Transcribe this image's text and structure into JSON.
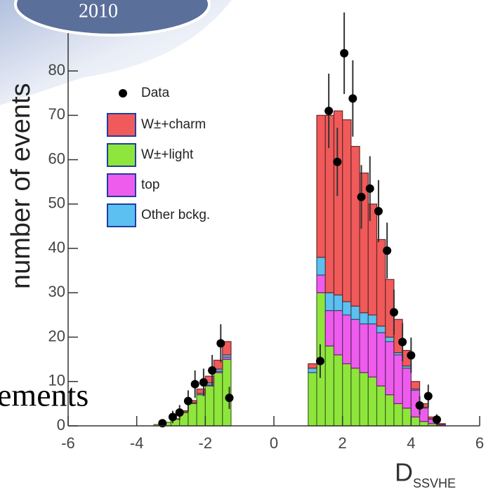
{
  "chart_data": {
    "type": "histogram",
    "badge": "2010",
    "overlay_text": "ements",
    "y_label": "number of events",
    "x_label": "D",
    "x_label_sub": "SSVHE",
    "xlim": [
      -6,
      6
    ],
    "xticks": [
      -6,
      -4,
      -2,
      0,
      2,
      4,
      6
    ],
    "ylim": [
      0,
      96
    ],
    "yticks": [
      0,
      10,
      20,
      30,
      40,
      50,
      60,
      70,
      80
    ],
    "bins": [
      -3.5,
      -3.25,
      -3,
      -2.75,
      -2.5,
      -2.25,
      -2,
      -1.75,
      -1.5,
      -1.25,
      -1,
      -0.75,
      -0.5,
      -0.25,
      0,
      0.25,
      0.5,
      0.75,
      1,
      1.25,
      1.5,
      1.75,
      2,
      2.25,
      2.5,
      2.75,
      3,
      3.25,
      3.5,
      3.75,
      4,
      4.25,
      4.5,
      4.75,
      5
    ],
    "series": [
      {
        "name": "W±+charm",
        "color": "#f05a5a",
        "values": [
          0,
          0,
          0.1,
          0.3,
          0.5,
          1,
          1.5,
          2,
          3,
          0,
          0,
          0,
          0,
          0,
          0,
          0,
          0,
          0,
          1,
          32,
          40,
          41.5,
          41,
          36,
          31.5,
          25,
          19.5,
          13,
          7.5,
          3.5,
          1.7,
          0.8,
          0.4,
          0.1
        ]
      },
      {
        "name": "W±+light",
        "color": "#8ee63c",
        "values": [
          0.3,
          0.8,
          1.5,
          3,
          5,
          7,
          9,
          12,
          15,
          0,
          0,
          0,
          0,
          0,
          0,
          0,
          0,
          0,
          12,
          30,
          18,
          16,
          14,
          13,
          12,
          11,
          9,
          7,
          5,
          4,
          2,
          1,
          0.5,
          0.2
        ]
      },
      {
        "name": "top",
        "color": "#ee5cee",
        "values": [
          0,
          0,
          0,
          0,
          0,
          0,
          0.2,
          0.3,
          0.5,
          0,
          0,
          0,
          0,
          0,
          0,
          0,
          0,
          0,
          0,
          4,
          8,
          10,
          11,
          11,
          11,
          12,
          12,
          12,
          11,
          9,
          6,
          3,
          1,
          0.2
        ]
      },
      {
        "name": "Other bckg.",
        "color": "#5cc0f0",
        "values": [
          0,
          0,
          0,
          0.1,
          0.2,
          0.3,
          0.5,
          0.5,
          0.5,
          0,
          0,
          0,
          0,
          0,
          0,
          0,
          0,
          0,
          1,
          4,
          4,
          3.5,
          3,
          3,
          2.5,
          2,
          1.5,
          1,
          0.5,
          0.5,
          0.3,
          0.2,
          0.1,
          0
        ]
      }
    ],
    "points": {
      "name": "Data",
      "color": "#000000",
      "x": [
        -3.25,
        -2.95,
        -2.75,
        -2.5,
        -2.3,
        -2.05,
        -1.8,
        -1.55,
        -1.3,
        1.35,
        1.6,
        1.85,
        2.05,
        2.3,
        2.55,
        2.8,
        3.05,
        3.3,
        3.5,
        3.75,
        4,
        4.25,
        4.5,
        4.75
      ],
      "values": [
        0.6,
        2,
        3,
        5.6,
        9.4,
        9.8,
        12.5,
        18.6,
        6.3,
        14.6,
        71,
        59.5,
        84,
        73.8,
        51.6,
        53.5,
        48.4,
        39.5,
        25.6,
        18.9,
        15.9,
        4.6,
        6.7,
        1.4
      ],
      "errors": [
        0.8,
        1.4,
        1.7,
        2.4,
        3.1,
        3.1,
        3.5,
        4.3,
        2.5,
        3.8,
        8.4,
        7.7,
        9.2,
        8.6,
        7.2,
        7.3,
        7,
        6.3,
        5.1,
        4.3,
        4,
        2.1,
        2.6,
        1.2
      ]
    }
  }
}
